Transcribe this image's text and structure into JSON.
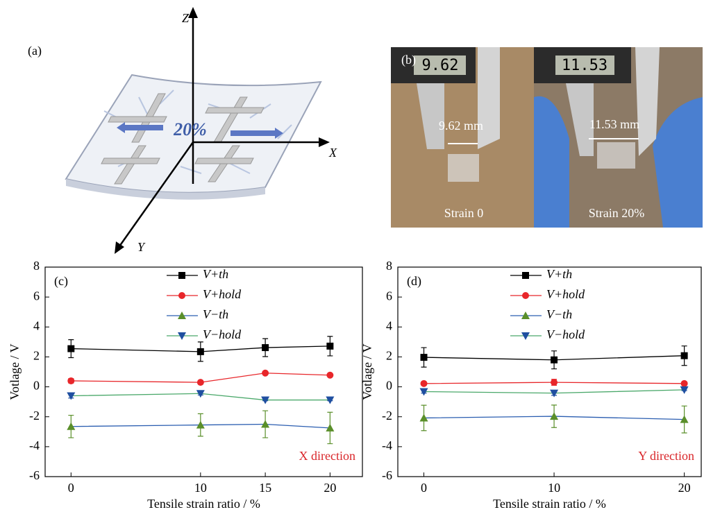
{
  "panel_a": {
    "label": "(a)",
    "z_axis": "Z",
    "x_axis": "X",
    "y_axis": "Y",
    "strain": "20%"
  },
  "panel_b": {
    "label": "(b)",
    "display_left": "9.62",
    "display_right": "11.53",
    "width_left": "9.62 mm",
    "width_right": "11.53 mm",
    "caption_left": "Strain 0",
    "caption_right": "Strain 20%"
  },
  "chart_data": [
    {
      "type": "line",
      "panel": "(c)",
      "annotation": "X direction",
      "xlabel": "Tensile strain ratio / %",
      "ylabel": "Votlage / V",
      "x": [
        0,
        10,
        15,
        20
      ],
      "xlim": [
        -2,
        22.5
      ],
      "xticks": [
        0,
        10,
        15,
        20
      ],
      "ylim": [
        -6,
        8
      ],
      "yticks": [
        -6,
        -4,
        -2,
        0,
        2,
        4,
        6,
        8
      ],
      "series": [
        {
          "name": "V+th",
          "color": "#000000",
          "marker_color": "#000000",
          "marker": "square",
          "values": [
            2.55,
            2.35,
            2.62,
            2.72
          ],
          "errors": [
            0.6,
            0.65,
            0.6,
            0.65
          ]
        },
        {
          "name": "V+hold",
          "color": "#e8262a",
          "marker_color": "#e8262a",
          "marker": "circle",
          "values": [
            0.4,
            0.3,
            0.92,
            0.78
          ],
          "errors": [
            0.15,
            0.05,
            0.1,
            0.05
          ]
        },
        {
          "name": "V−th",
          "color": "#2a5db0",
          "marker_color": "#5a8f2a",
          "marker": "triangle-up",
          "values": [
            -2.65,
            -2.55,
            -2.5,
            -2.75
          ],
          "errors": [
            0.75,
            0.75,
            0.9,
            1.05
          ]
        },
        {
          "name": "V−hold",
          "color": "#4aa86a",
          "marker_color": "#1f4fa0",
          "marker": "triangle-down",
          "values": [
            -0.6,
            -0.45,
            -0.88,
            -0.88
          ],
          "errors": [
            0.15,
            0.1,
            0.05,
            0.05
          ]
        }
      ]
    },
    {
      "type": "line",
      "panel": "(d)",
      "annotation": "Y direction",
      "xlabel": "Tensile strain ratio / %",
      "ylabel": "Votlage / V",
      "x": [
        0,
        10,
        20
      ],
      "xlim": [
        -2,
        21.3
      ],
      "xticks": [
        0,
        10,
        20
      ],
      "ylim": [
        -6,
        8
      ],
      "yticks": [
        -6,
        -4,
        -2,
        0,
        2,
        4,
        6,
        8
      ],
      "series": [
        {
          "name": "V+th",
          "color": "#000000",
          "marker_color": "#000000",
          "marker": "square",
          "values": [
            1.97,
            1.8,
            2.08
          ],
          "errors": [
            0.65,
            0.6,
            0.65
          ]
        },
        {
          "name": "V+hold",
          "color": "#e8262a",
          "marker_color": "#e8262a",
          "marker": "circle",
          "values": [
            0.22,
            0.3,
            0.22
          ],
          "errors": [
            0.05,
            0.2,
            0.05
          ]
        },
        {
          "name": "V−th",
          "color": "#2a5db0",
          "marker_color": "#5a8f2a",
          "marker": "triangle-up",
          "values": [
            -2.08,
            -1.97,
            -2.18
          ],
          "errors": [
            0.85,
            0.75,
            0.9
          ]
        },
        {
          "name": "V−hold",
          "color": "#4aa86a",
          "marker_color": "#1f4fa0",
          "marker": "triangle-down",
          "values": [
            -0.32,
            -0.42,
            -0.2
          ],
          "errors": [
            0.1,
            0.15,
            0.05
          ]
        }
      ]
    }
  ]
}
